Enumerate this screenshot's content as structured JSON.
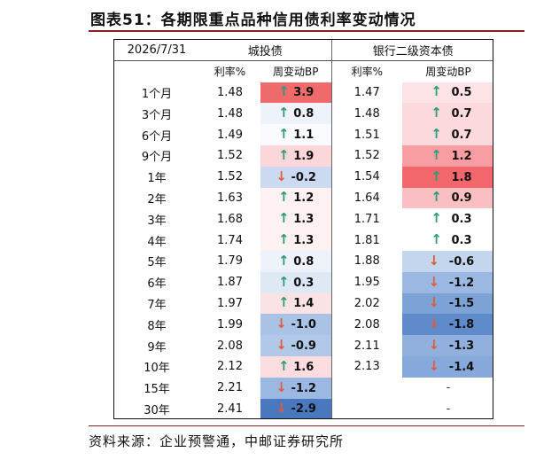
{
  "title": "图表51：各期限重点品种信用债利率变动情况",
  "source": "资料来源：企业预警通，中邮证券研究所",
  "table": {
    "date": "2026/7/31",
    "groups": [
      "城投债",
      "银行二级资本债"
    ],
    "subheaders": [
      "利率%",
      "周变动BP",
      "利率%",
      "周变动BP"
    ],
    "rows": [
      {
        "term": "1个月",
        "ct_rate": "1.48",
        "ct_chg": "3.9",
        "ct_dir": "up",
        "ct_color": "#ef6b6b",
        "bk_rate": "1.47",
        "bk_chg": "0.5",
        "bk_dir": "up",
        "bk_color": "#fde3e5"
      },
      {
        "term": "3个月",
        "ct_rate": "1.48",
        "ct_chg": "0.8",
        "ct_dir": "up",
        "ct_color": "#eef2fa",
        "bk_rate": "1.48",
        "bk_chg": "0.7",
        "bk_dir": "up",
        "bk_color": "#fcd9dc"
      },
      {
        "term": "6个月",
        "ct_rate": "1.49",
        "ct_chg": "1.1",
        "ct_dir": "up",
        "ct_color": "#f9fafd",
        "bk_rate": "1.51",
        "bk_chg": "0.7",
        "bk_dir": "up",
        "bk_color": "#fcd9dc"
      },
      {
        "term": "9个月",
        "ct_rate": "1.52",
        "ct_chg": "1.9",
        "ct_dir": "up",
        "ct_color": "#fcd7da",
        "bk_rate": "1.52",
        "bk_chg": "1.2",
        "bk_dir": "up",
        "bk_color": "#f89ea3"
      },
      {
        "term": "1年",
        "ct_rate": "1.52",
        "ct_chg": "-0.2",
        "ct_dir": "down",
        "ct_color": "#cbdaf0",
        "bk_rate": "1.54",
        "bk_chg": "1.8",
        "bk_dir": "up",
        "bk_color": "#f2676b"
      },
      {
        "term": "2年",
        "ct_rate": "1.63",
        "ct_chg": "1.2",
        "ct_dir": "up",
        "ct_color": "#fdf1f2",
        "bk_rate": "1.64",
        "bk_chg": "0.9",
        "bk_dir": "up",
        "bk_color": "#fabfc3"
      },
      {
        "term": "3年",
        "ct_rate": "1.68",
        "ct_chg": "1.3",
        "ct_dir": "up",
        "ct_color": "#fdf1f2",
        "bk_rate": "1.71",
        "bk_chg": "0.3",
        "bk_dir": "up",
        "bk_color": "#ffffff"
      },
      {
        "term": "4年",
        "ct_rate": "1.74",
        "ct_chg": "1.3",
        "ct_dir": "up",
        "ct_color": "#fdf1f2",
        "bk_rate": "1.81",
        "bk_chg": "0.3",
        "bk_dir": "up",
        "bk_color": "#ffffff"
      },
      {
        "term": "5年",
        "ct_rate": "1.79",
        "ct_chg": "0.8",
        "ct_dir": "up",
        "ct_color": "#eef2fa",
        "bk_rate": "1.88",
        "bk_chg": "-0.6",
        "bk_dir": "down",
        "bk_color": "#c4d5ee"
      },
      {
        "term": "6年",
        "ct_rate": "1.87",
        "ct_chg": "0.3",
        "ct_dir": "up",
        "ct_color": "#dfe8f5",
        "bk_rate": "1.95",
        "bk_chg": "-1.2",
        "bk_dir": "down",
        "bk_color": "#9bb8e2"
      },
      {
        "term": "7年",
        "ct_rate": "1.97",
        "ct_chg": "1.4",
        "ct_dir": "up",
        "ct_color": "#fbe3e5",
        "bk_rate": "2.02",
        "bk_chg": "-1.5",
        "bk_dir": "down",
        "bk_color": "#7da2d6"
      },
      {
        "term": "8年",
        "ct_rate": "1.99",
        "ct_chg": "-1.0",
        "ct_dir": "down",
        "ct_color": "#a9c2e6",
        "bk_rate": "2.08",
        "bk_chg": "-1.8",
        "bk_dir": "down",
        "bk_color": "#5f8bcb"
      },
      {
        "term": "9年",
        "ct_rate": "2.08",
        "ct_chg": "-0.9",
        "ct_dir": "down",
        "ct_color": "#b2c8e8",
        "bk_rate": "2.11",
        "bk_chg": "-1.3",
        "bk_dir": "down",
        "bk_color": "#91b0de"
      },
      {
        "term": "10年",
        "ct_rate": "2.12",
        "ct_chg": "1.6",
        "ct_dir": "up",
        "ct_color": "#fbdde0",
        "bk_rate": "2.13",
        "bk_chg": "-1.4",
        "bk_dir": "down",
        "bk_color": "#86a8da"
      },
      {
        "term": "15年",
        "ct_rate": "2.21",
        "ct_chg": "-1.2",
        "ct_dir": "down",
        "ct_color": "#9bb8e2",
        "bk_rate": "",
        "bk_chg": "-",
        "bk_dir": "none",
        "bk_color": "#ffffff"
      },
      {
        "term": "30年",
        "ct_rate": "2.41",
        "ct_chg": "-2.9",
        "ct_dir": "down",
        "ct_color": "#4a78bf",
        "bk_rate": "",
        "bk_chg": "-",
        "bk_dir": "none",
        "bk_color": "#ffffff"
      }
    ]
  },
  "icons": {
    "up": "up-arrow-icon",
    "down": "down-arrow-icon"
  }
}
